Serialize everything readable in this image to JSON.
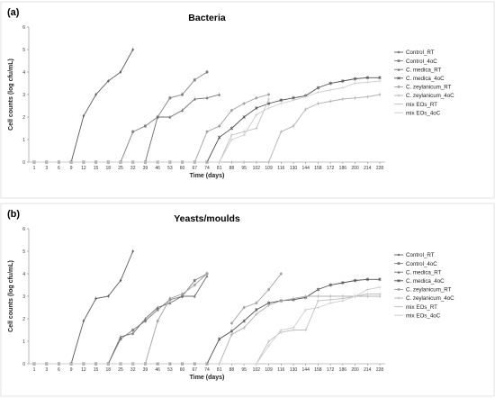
{
  "chart_data": [
    {
      "panel": "(a)",
      "type": "line",
      "title": "Bacteria",
      "xlabel": "Time (days)",
      "ylabel": "Cell counts (log cfu/mL)",
      "ylim": [
        0,
        6
      ],
      "categories": [
        "1",
        "3",
        "6",
        "9",
        "12",
        "15",
        "18",
        "25",
        "32",
        "39",
        "46",
        "53",
        "60",
        "67",
        "74",
        "81",
        "88",
        "95",
        "102",
        "109",
        "116",
        "130",
        "144",
        "158",
        "172",
        "186",
        "200",
        "214",
        "228"
      ],
      "series": [
        {
          "name": "Control_RT",
          "color": "#595959",
          "marker": "diamond",
          "values": [
            0,
            0,
            0,
            0,
            2.05,
            3.0,
            3.6,
            4.0,
            5.0,
            null,
            null,
            null,
            null,
            null,
            null,
            null,
            null,
            null,
            null,
            null,
            null,
            null,
            null,
            null,
            null,
            null,
            null,
            null,
            null
          ]
        },
        {
          "name": "Control_4oC",
          "color": "#808080",
          "marker": "square",
          "values": [
            0,
            0,
            0,
            0,
            0,
            0,
            0,
            0,
            1.35,
            1.6,
            2.0,
            2.85,
            3.0,
            3.65,
            4.0,
            null,
            null,
            null,
            null,
            null,
            null,
            null,
            null,
            null,
            null,
            null,
            null,
            null,
            null
          ]
        },
        {
          "name": "C. medica_RT",
          "color": "#6e6e6e",
          "marker": "triangle",
          "values": [
            0,
            0,
            0,
            0,
            0,
            0,
            0,
            0,
            0,
            0,
            2.0,
            2.0,
            2.3,
            2.8,
            2.85,
            3.0,
            null,
            null,
            null,
            null,
            null,
            null,
            null,
            null,
            null,
            null,
            null,
            null,
            null
          ]
        },
        {
          "name": "C. medica_4oC",
          "color": "#505050",
          "marker": "x",
          "values": [
            0,
            0,
            0,
            0,
            0,
            0,
            0,
            0,
            0,
            0,
            0,
            0,
            0,
            0,
            0,
            1.1,
            1.5,
            2.0,
            2.4,
            2.6,
            2.75,
            2.85,
            2.95,
            3.3,
            3.5,
            3.6,
            3.7,
            3.75,
            3.75
          ]
        },
        {
          "name": "C. zeylanicum_RT",
          "color": "#a0a0a0",
          "marker": "circle",
          "values": [
            0,
            0,
            0,
            0,
            0,
            0,
            0,
            0,
            0,
            0,
            0,
            0,
            0,
            0,
            1.35,
            1.6,
            2.3,
            2.6,
            2.85,
            3.0,
            null,
            null,
            null,
            null,
            null,
            null,
            null,
            null,
            null
          ]
        },
        {
          "name": "C. zeylanicum_4oC",
          "color": "#b0b0b0",
          "marker": "plus",
          "values": [
            0,
            0,
            0,
            0,
            0,
            0,
            0,
            0,
            0,
            0,
            0,
            0,
            0,
            0,
            0,
            0,
            0,
            0,
            0,
            0,
            1.35,
            1.6,
            2.35,
            2.6,
            2.7,
            2.8,
            2.85,
            2.9,
            3.0
          ]
        },
        {
          "name": "mix EOs_RT",
          "color": "#c0c0c0",
          "marker": "dash",
          "values": [
            0,
            0,
            0,
            0,
            0,
            0,
            0,
            0,
            0,
            0,
            0,
            0,
            0,
            0,
            0,
            0,
            1.2,
            1.35,
            1.5,
            2.8,
            null,
            null,
            null,
            null,
            null,
            null,
            null,
            null,
            null
          ]
        },
        {
          "name": "mix EOs_4oC",
          "color": "#cdcdcd",
          "marker": "dash",
          "values": [
            0,
            0,
            0,
            0,
            0,
            0,
            0,
            0,
            0,
            0,
            0,
            0,
            0,
            0,
            0,
            0,
            1.0,
            1.2,
            2.1,
            2.4,
            2.6,
            2.75,
            2.9,
            3.1,
            3.2,
            3.3,
            3.5,
            3.55,
            3.6
          ]
        }
      ]
    },
    {
      "panel": "(b)",
      "type": "line",
      "title": "Yeasts/moulds",
      "xlabel": "Time (days)",
      "ylabel": "Cell counts (log cfu/mL)",
      "ylim": [
        0,
        6
      ],
      "categories": [
        "1",
        "3",
        "6",
        "9",
        "12",
        "15",
        "18",
        "25",
        "32",
        "39",
        "46",
        "53",
        "60",
        "67",
        "74",
        "81",
        "88",
        "95",
        "102",
        "109",
        "116",
        "130",
        "144",
        "158",
        "172",
        "186",
        "200",
        "214",
        "228"
      ],
      "series": [
        {
          "name": "Control_RT",
          "color": "#595959",
          "marker": "diamond",
          "values": [
            0,
            0,
            0,
            0,
            1.9,
            2.9,
            3.0,
            3.7,
            5.0,
            null,
            null,
            null,
            null,
            null,
            null,
            null,
            null,
            null,
            null,
            null,
            null,
            null,
            null,
            null,
            null,
            null,
            null,
            null,
            null
          ]
        },
        {
          "name": "Control_4oC",
          "color": "#808080",
          "marker": "square",
          "values": [
            0,
            0,
            0,
            0,
            0,
            0,
            0,
            1.1,
            1.5,
            1.9,
            2.4,
            2.85,
            3.0,
            3.7,
            4.0,
            null,
            null,
            null,
            null,
            null,
            null,
            null,
            null,
            null,
            null,
            null,
            null,
            null,
            null
          ]
        },
        {
          "name": "C. medica_RT",
          "color": "#6e6e6e",
          "marker": "triangle",
          "values": [
            0,
            0,
            0,
            0,
            0,
            0,
            0,
            1.2,
            1.35,
            2.0,
            2.5,
            2.7,
            3.0,
            3.0,
            3.9,
            null,
            null,
            null,
            null,
            null,
            null,
            null,
            null,
            null,
            null,
            null,
            null,
            null,
            null
          ]
        },
        {
          "name": "C. medica_4oC",
          "color": "#505050",
          "marker": "x",
          "values": [
            0,
            0,
            0,
            0,
            0,
            0,
            0,
            0,
            0,
            0,
            0,
            0,
            0,
            0,
            0,
            1.1,
            1.45,
            1.9,
            2.4,
            2.7,
            2.8,
            2.85,
            2.95,
            3.3,
            3.5,
            3.6,
            3.7,
            3.75,
            3.75
          ]
        },
        {
          "name": "C. zeylanicum_RT",
          "color": "#a0a0a0",
          "marker": "circle",
          "values": [
            0,
            0,
            0,
            0,
            0,
            0,
            0,
            0,
            0,
            0,
            1.9,
            2.9,
            3.1,
            3.5,
            4.0,
            null,
            1.8,
            2.5,
            2.7,
            3.3,
            4.0,
            null,
            null,
            null,
            null,
            null,
            null,
            null,
            null
          ]
        },
        {
          "name": "C. zeylanicum_4oC",
          "color": "#b0b0b0",
          "marker": "plus",
          "values": [
            0,
            0,
            0,
            0,
            0,
            0,
            0,
            0,
            0,
            0,
            0,
            0,
            0,
            0,
            0,
            0,
            1.3,
            1.6,
            2.2,
            2.6,
            2.8,
            2.9,
            3.0,
            3.0,
            3.0,
            3.0,
            3.0,
            3.0,
            3.0
          ]
        },
        {
          "name": "mix EOs_RT",
          "color": "#c0c0c0",
          "marker": "dash",
          "values": [
            0,
            0,
            0,
            0,
            0,
            0,
            0,
            0,
            0,
            0,
            0,
            0,
            0,
            0,
            0,
            0,
            0,
            0,
            0,
            1.0,
            1.4,
            1.5,
            1.5,
            2.8,
            2.85,
            2.9,
            3.0,
            3.1,
            3.1
          ]
        },
        {
          "name": "mix EOs_4oC",
          "color": "#cdcdcd",
          "marker": "dash",
          "values": [
            0,
            0,
            0,
            0,
            0,
            0,
            0,
            0,
            0,
            0,
            0,
            0,
            0,
            0,
            0,
            0,
            0,
            0,
            0,
            0.8,
            1.5,
            1.6,
            2.4,
            2.5,
            2.7,
            2.8,
            3.0,
            3.3,
            3.4
          ]
        }
      ]
    }
  ]
}
